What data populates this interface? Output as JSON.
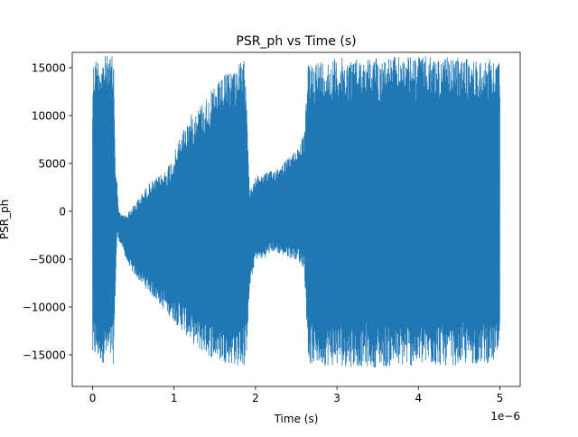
{
  "chart_data": {
    "type": "line",
    "title": "PSR_ph vs Time (s)",
    "xlabel": "Time (s)",
    "ylabel": "PSR_ph",
    "x_offset_label": "1e−6",
    "xlim": [
      -2.5e-07,
      5.25e-06
    ],
    "ylim": [
      -18300,
      16600
    ],
    "x_ticks": [
      0,
      1e-06,
      2e-06,
      3e-06,
      4e-06,
      5e-06
    ],
    "x_tick_labels": [
      "0",
      "1",
      "2",
      "3",
      "4",
      "5"
    ],
    "y_ticks": [
      -15000,
      -10000,
      -5000,
      0,
      5000,
      10000,
      15000
    ],
    "y_tick_labels": [
      "−15000",
      "−10000",
      "−5000",
      "0",
      "5000",
      "10000",
      "15000"
    ],
    "grid": false,
    "legend": "none",
    "series": [
      {
        "color": "#1f77b4",
        "line_width": 0.8,
        "envelope": [
          {
            "x": 0.0,
            "low": -15800,
            "high": 12500
          },
          {
            "x": 5e-09,
            "low": -15900,
            "high": 15500
          },
          {
            "x": 2e-08,
            "low": -15600,
            "high": 16100
          },
          {
            "x": 1e-07,
            "low": -15800,
            "high": 16200
          },
          {
            "x": 2e-07,
            "low": -16000,
            "high": 16300
          },
          {
            "x": 2.6e-07,
            "low": -15900,
            "high": 16100
          },
          {
            "x": 2.8e-07,
            "low": -8000,
            "high": 4500
          },
          {
            "x": 3e-07,
            "low": -2500,
            "high": 3000
          },
          {
            "x": 3.2e-07,
            "low": -3000,
            "high": 0
          },
          {
            "x": 3.6e-07,
            "low": -3600,
            "high": -400
          },
          {
            "x": 4.2e-07,
            "low": -5200,
            "high": -300
          },
          {
            "x": 5e-07,
            "low": -6500,
            "high": 600
          },
          {
            "x": 6e-07,
            "low": -7500,
            "high": 1800
          },
          {
            "x": 7e-07,
            "low": -8500,
            "high": 3000
          },
          {
            "x": 8e-07,
            "low": -9500,
            "high": 3500
          },
          {
            "x": 9e-07,
            "low": -10500,
            "high": 4500
          },
          {
            "x": 1e-06,
            "low": -11500,
            "high": 6000
          },
          {
            "x": 1.1e-06,
            "low": -12500,
            "high": 8500
          },
          {
            "x": 1.2e-06,
            "low": -13500,
            "high": 10000
          },
          {
            "x": 1.3e-06,
            "low": -14500,
            "high": 11000
          },
          {
            "x": 1.4e-06,
            "low": -15000,
            "high": 12000
          },
          {
            "x": 1.5e-06,
            "low": -15500,
            "high": 13000
          },
          {
            "x": 1.6e-06,
            "low": -15800,
            "high": 14000
          },
          {
            "x": 1.7e-06,
            "low": -16000,
            "high": 15000
          },
          {
            "x": 1.8e-06,
            "low": -16200,
            "high": 15500
          },
          {
            "x": 1.88e-06,
            "low": -16300,
            "high": 15800
          },
          {
            "x": 1.93e-06,
            "low": -8000,
            "high": 2000
          },
          {
            "x": 2e-06,
            "low": -5000,
            "high": 3500
          },
          {
            "x": 2.1e-06,
            "low": -5000,
            "high": 4000
          },
          {
            "x": 2.2e-06,
            "low": -4200,
            "high": 4200
          },
          {
            "x": 2.3e-06,
            "low": -4500,
            "high": 4800
          },
          {
            "x": 2.4e-06,
            "low": -4800,
            "high": 5500
          },
          {
            "x": 2.5e-06,
            "low": -5000,
            "high": 6500
          },
          {
            "x": 2.6e-06,
            "low": -6000,
            "high": 8000
          },
          {
            "x": 2.65e-06,
            "low": -16000,
            "high": 15800
          },
          {
            "x": 3e-06,
            "low": -16200,
            "high": 16000
          },
          {
            "x": 3.5e-06,
            "low": -16300,
            "high": 16100
          },
          {
            "x": 4e-06,
            "low": -16200,
            "high": 16200
          },
          {
            "x": 4.5e-06,
            "low": -16100,
            "high": 16000
          },
          {
            "x": 5e-06,
            "low": -15800,
            "high": 15800
          }
        ]
      }
    ]
  }
}
